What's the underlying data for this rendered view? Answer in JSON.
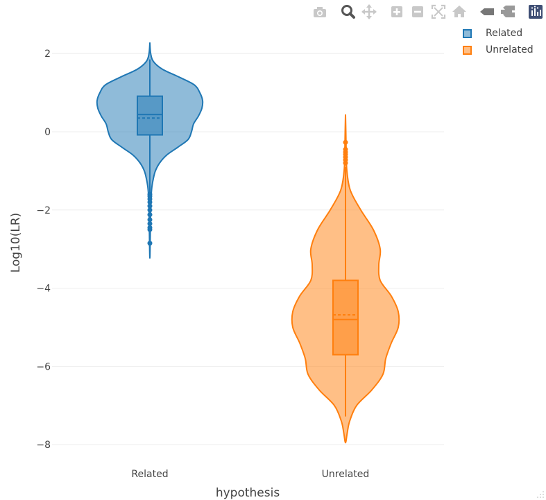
{
  "modebar": [
    {
      "name": "camera-icon",
      "title": "Download plot as a png"
    },
    {
      "name": "zoom-icon",
      "title": "Zoom"
    },
    {
      "name": "pan-icon",
      "title": "Pan"
    },
    {
      "name": "zoom-in-icon",
      "title": "Zoom in"
    },
    {
      "name": "zoom-out-icon",
      "title": "Zoom out"
    },
    {
      "name": "autoscale-icon",
      "title": "Autoscale"
    },
    {
      "name": "home-icon",
      "title": "Reset axes"
    },
    {
      "name": "spike-lines-icon",
      "title": "Toggle Spike Lines"
    },
    {
      "name": "hover-compare-icon",
      "title": "Compare data on hover"
    },
    {
      "name": "plotly-logo-icon",
      "title": "Produced with Plotly"
    }
  ],
  "legend": [
    {
      "label": "Related"
    },
    {
      "label": "Unrelated"
    }
  ],
  "chart_data": {
    "type": "violin",
    "title": "",
    "xlabel": "hypothesis",
    "ylabel": "Log10(LR)",
    "categories": [
      "Related",
      "Unrelated"
    ],
    "ylim": [
      -8.25,
      2.3
    ],
    "yticks": [
      2,
      0,
      -2,
      -4,
      -6,
      -8
    ],
    "ytick_labels": [
      "2",
      "0",
      "−2",
      "−4",
      "−6",
      "−8"
    ],
    "grid": true,
    "legend_position": "top-right",
    "colors": {
      "Related": "#1f77b4",
      "Unrelated": "#ff7f0e"
    },
    "series": [
      {
        "name": "Related",
        "min": -3.23,
        "max": 2.27,
        "q1": -0.08,
        "median": 0.44,
        "q3": 0.91,
        "mean": 0.35,
        "whisker_low": -1.55,
        "whisker_high": 1.85,
        "outliers": [
          -1.6,
          -1.65,
          -1.72,
          -1.8,
          -1.9,
          -2.0,
          -2.12,
          -2.25,
          -2.35,
          -2.45,
          -2.5,
          -2.85
        ],
        "density": [
          [
            2.27,
            0
          ],
          [
            2.0,
            0.012
          ],
          [
            1.8,
            0.05
          ],
          [
            1.6,
            0.18
          ],
          [
            1.4,
            0.42
          ],
          [
            1.2,
            0.64
          ],
          [
            1.0,
            0.72
          ],
          [
            0.8,
            0.76
          ],
          [
            0.6,
            0.75
          ],
          [
            0.4,
            0.7
          ],
          [
            0.2,
            0.63
          ],
          [
            0.0,
            0.6
          ],
          [
            -0.2,
            0.55
          ],
          [
            -0.4,
            0.4
          ],
          [
            -0.6,
            0.24
          ],
          [
            -0.8,
            0.14
          ],
          [
            -1.0,
            0.08
          ],
          [
            -1.2,
            0.05
          ],
          [
            -1.4,
            0.03
          ],
          [
            -1.6,
            0.02
          ],
          [
            -1.8,
            0.015
          ],
          [
            -2.0,
            0.012
          ],
          [
            -2.4,
            0.008
          ],
          [
            -2.8,
            0.005
          ],
          [
            -3.23,
            0
          ]
        ]
      },
      {
        "name": "Unrelated",
        "min": -7.95,
        "max": 0.43,
        "q1": -5.7,
        "median": -4.8,
        "q3": -3.8,
        "mean": -4.68,
        "whisker_low": -7.28,
        "whisker_high": -0.9,
        "outliers": [
          -0.27,
          -0.45,
          -0.52,
          -0.58,
          -0.65,
          -0.72,
          -0.8
        ],
        "density": [
          [
            0.43,
            0
          ],
          [
            0.0,
            0.005
          ],
          [
            -0.5,
            0.01
          ],
          [
            -1.0,
            0.02
          ],
          [
            -1.5,
            0.07
          ],
          [
            -2.0,
            0.22
          ],
          [
            -2.5,
            0.4
          ],
          [
            -3.0,
            0.5
          ],
          [
            -3.4,
            0.48
          ],
          [
            -3.8,
            0.5
          ],
          [
            -4.2,
            0.66
          ],
          [
            -4.6,
            0.76
          ],
          [
            -5.0,
            0.76
          ],
          [
            -5.4,
            0.66
          ],
          [
            -5.8,
            0.58
          ],
          [
            -6.2,
            0.54
          ],
          [
            -6.6,
            0.38
          ],
          [
            -7.0,
            0.16
          ],
          [
            -7.4,
            0.06
          ],
          [
            -7.7,
            0.025
          ],
          [
            -7.95,
            0
          ]
        ]
      }
    ]
  }
}
